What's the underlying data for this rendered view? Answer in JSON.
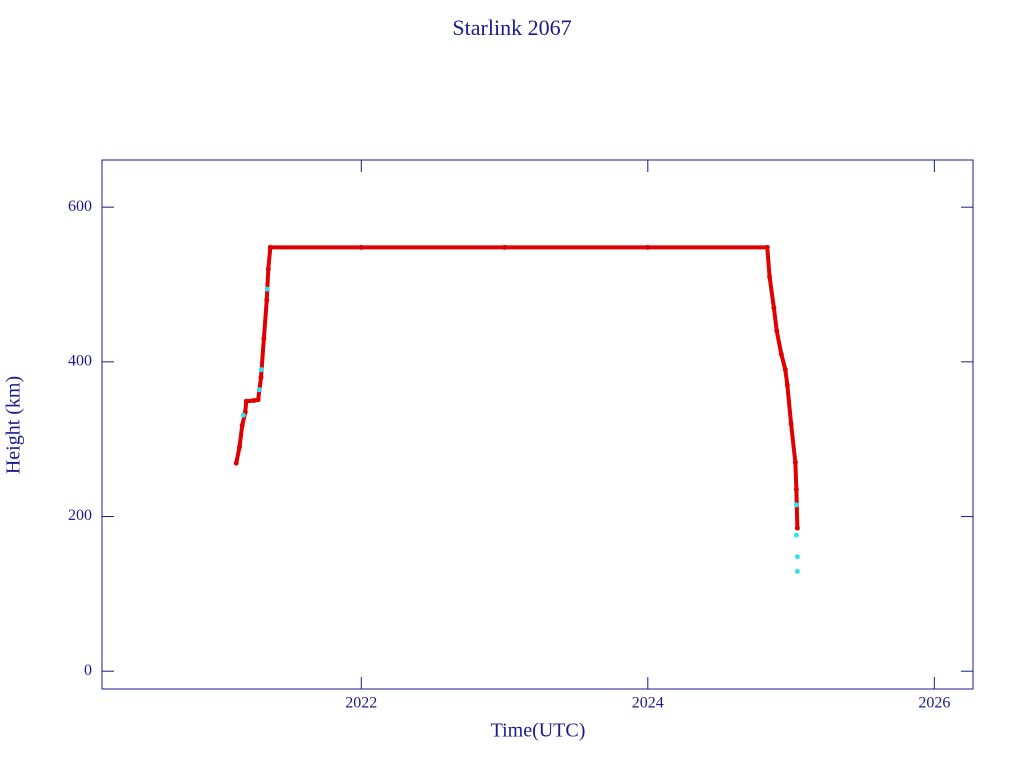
{
  "chart_data": {
    "type": "scatter",
    "title": "Starlink 2067",
    "xlabel": "Time(UTC)",
    "ylabel": "Height (km)",
    "xlim": [
      2020.19,
      2026.27
    ],
    "ylim": [
      -23,
      661
    ],
    "xticks": [
      2022,
      2024,
      2026
    ],
    "yticks": [
      0,
      200,
      400,
      600
    ],
    "series": [
      {
        "color": "#e00000",
        "line": true,
        "x": [
          2021.127,
          2021.15,
          2021.169,
          2021.19,
          2021.197,
          2021.25,
          2021.28,
          2021.3,
          2021.32,
          2021.34,
          2021.351,
          2021.365,
          2022.0,
          2023.0,
          2024.0,
          2024.834,
          2024.85,
          2024.88,
          2024.9,
          2024.932,
          2024.96,
          2024.974,
          2025.0,
          2025.03,
          2025.037,
          2025.044
        ],
        "values": [
          269,
          290,
          318,
          335,
          349,
          350,
          351,
          380,
          430,
          480,
          520,
          548,
          548,
          548,
          548,
          548,
          510,
          470,
          440,
          410,
          390,
          370,
          320,
          270,
          235,
          185
        ]
      },
      {
        "color": "#33e0f0",
        "line": false,
        "x": [
          2021.176,
          2021.288,
          2021.302,
          2021.344,
          2025.037,
          2025.037,
          2025.044,
          2025.044
        ],
        "values": [
          331,
          364,
          390,
          494,
          215,
          176,
          148,
          129
        ]
      }
    ]
  }
}
